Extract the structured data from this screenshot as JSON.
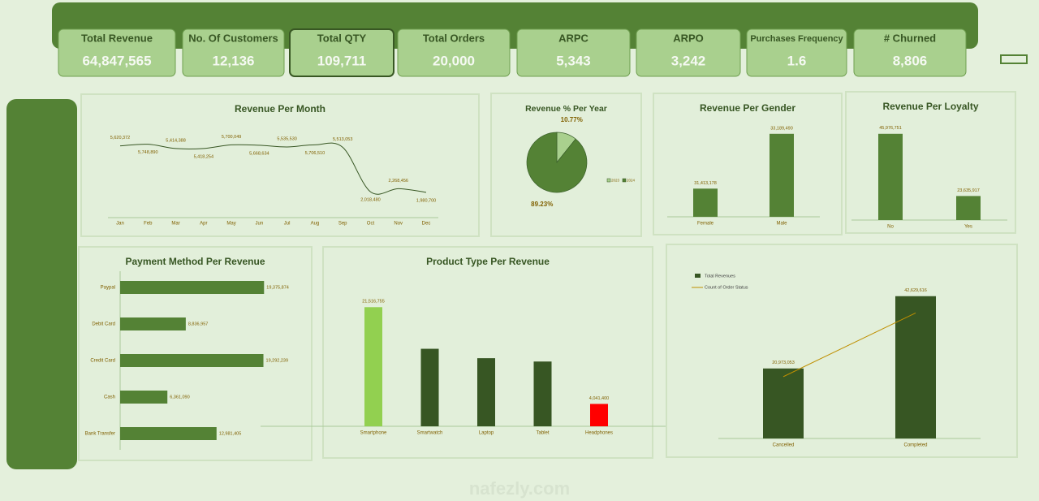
{
  "kpis": [
    {
      "label": "Total Revenue",
      "value": "64,847,565"
    },
    {
      "label": "No. Of Customers",
      "value": "12,136"
    },
    {
      "label": "Total QTY",
      "value": "109,711"
    },
    {
      "label": "Total Orders",
      "value": "20,000"
    },
    {
      "label": "ARPC",
      "value": "5,343"
    },
    {
      "label": "ARPO",
      "value": "3,242"
    },
    {
      "label": "Purchases Frequency",
      "value": "1.6"
    },
    {
      "label": "# Churned",
      "value": "8,806"
    }
  ],
  "watermark": "nafezly.com",
  "chart_data": [
    {
      "type": "line",
      "title": "Revenue Per Month",
      "categories": [
        "Jan",
        "Feb",
        "Mar",
        "Apr",
        "May",
        "Jun",
        "Jul",
        "Aug",
        "Sep",
        "Oct",
        "Nov",
        "Dec"
      ],
      "values": [
        5620372,
        5748890,
        5414388,
        5418254,
        5700049,
        5668634,
        5535530,
        5706510,
        5513053,
        2018480,
        2268456,
        1980700
      ],
      "value_labels": [
        "5,620,372",
        "5,748,890",
        "5,414,388",
        "5,418,254",
        "5,700,049",
        "5,668,634",
        "5,535,530",
        "5,706,510",
        "5,513,053",
        "2,018,480",
        "2,268,456",
        "1,980,700"
      ],
      "ylim": [
        0,
        7000000
      ],
      "color": "#375623"
    },
    {
      "type": "pie",
      "title": "Revenue % Per Year",
      "categories": [
        "2023",
        "2024"
      ],
      "values": [
        10.77,
        89.23
      ],
      "value_labels": [
        "10.77%",
        "89.23%"
      ],
      "colors": [
        "#a9d08e",
        "#548235"
      ],
      "legend": "right"
    },
    {
      "type": "bar",
      "title": "Revenue Per Gender",
      "categories": [
        "Female",
        "Male"
      ],
      "values": [
        31413178,
        33189490
      ],
      "value_labels": [
        "31,413,178",
        "33,189,490"
      ],
      "ylim": [
        30500000,
        34000000
      ],
      "color": "#548235"
    },
    {
      "type": "bar",
      "title": "Revenue Per Loyalty",
      "categories": [
        "No",
        "Yes"
      ],
      "values": [
        45976751,
        23635917
      ],
      "value_labels": [
        "45,976,751",
        "23,635,917"
      ],
      "ylim": [
        15000000,
        50000000
      ],
      "color": "#548235"
    },
    {
      "type": "hbar",
      "title": "Payment Method Per Revenue",
      "categories": [
        "Paypal",
        "Debit Card",
        "Credit Card",
        "Cash",
        "Bank Transfer"
      ],
      "values": [
        19375874,
        8836957,
        19292239,
        6361090,
        12981405
      ],
      "value_labels": [
        "19,375,874",
        "8,836,957",
        "19,292,239",
        "6,361,090",
        "12,981,405"
      ],
      "xlim": [
        0,
        20000000
      ],
      "color": "#548235"
    },
    {
      "type": "bar",
      "title": "Product Type Per Revenue",
      "categories": [
        "Smartphone",
        "Smartwatch",
        "Laptop",
        "Tablet",
        "Headphones"
      ],
      "values": [
        21516755,
        14000000,
        12300000,
        11700000,
        4041400
      ],
      "value_labels": [
        "21,516,755",
        null,
        null,
        null,
        "4,041,400"
      ],
      "ylim": [
        0,
        22000000
      ],
      "colors": [
        "#92d050",
        "#375623",
        "#375623",
        "#375623",
        "#ff0000"
      ]
    },
    {
      "type": "combo",
      "categories": [
        "Cancelled",
        "Completed"
      ],
      "ylim": [
        0,
        45000000
      ],
      "y2lim": [
        0,
        15000
      ],
      "series": [
        {
          "name": "Total Revenues",
          "kind": "bar",
          "color": "#375623",
          "values": [
            20973053,
            42629616
          ],
          "value_labels": [
            "20,973,053",
            "42,629,616"
          ]
        },
        {
          "name": "Count of Order Status",
          "kind": "line",
          "axis": "y2",
          "color": "#bf8f00",
          "values": [
            6600,
            13400
          ]
        }
      ],
      "legend": "top-left"
    }
  ]
}
